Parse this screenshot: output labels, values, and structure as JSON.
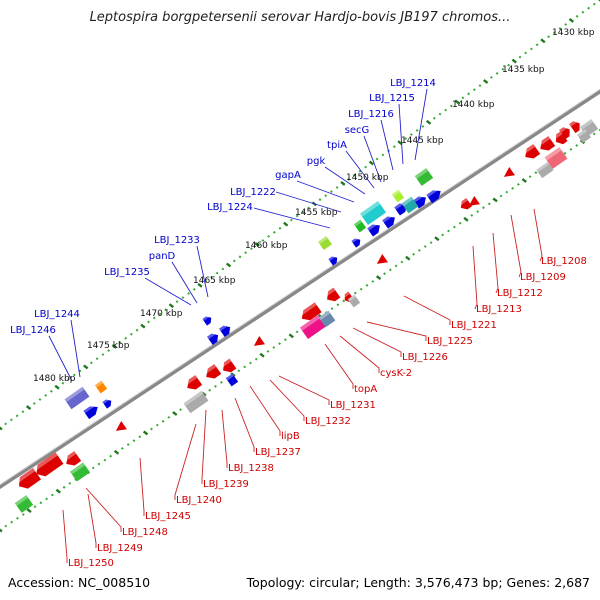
{
  "title": "Leptospira borgpetersenii serovar Hardjo-bovis JB197 chromos...",
  "footer": {
    "accession": "Accession: NC_008510",
    "topology": "Topology: circular; Length: 3,576,473 bp; Genes: 2,687"
  },
  "colors": {
    "backbone": "#888888",
    "ruler_dots": "#33aa33",
    "ruler_ticks": "#1f7a1f",
    "forward_label": "#0000cc",
    "reverse_label": "#cc0000"
  },
  "ruler_labels": [
    "1430 kbp",
    "1435 kbp",
    "1440 kbp",
    "1445 kbp",
    "1450 kbp",
    "1455 kbp",
    "1460 kbp",
    "1465 kbp",
    "1470 kbp",
    "1475 kbp",
    "1480 kbp"
  ],
  "forward_genes": [
    "LBJ_1214",
    "LBJ_1215",
    "LBJ_1216",
    "secG",
    "tpiA",
    "pgk",
    "gapA",
    "LBJ_1222",
    "LBJ_1224",
    "LBJ_1233",
    "panD",
    "LBJ_1235",
    "LBJ_1244",
    "LBJ_1246"
  ],
  "reverse_genes": [
    "LBJ_1208",
    "LBJ_1209",
    "LBJ_1212",
    "LBJ_1213",
    "LBJ_1221",
    "LBJ_1225",
    "LBJ_1226",
    "cysK-2",
    "topA",
    "LBJ_1231",
    "LBJ_1232",
    "lipB",
    "LBJ_1237",
    "LBJ_1238",
    "LBJ_1239",
    "LBJ_1240",
    "LBJ_1245",
    "LBJ_1248",
    "LBJ_1249",
    "LBJ_1250"
  ]
}
